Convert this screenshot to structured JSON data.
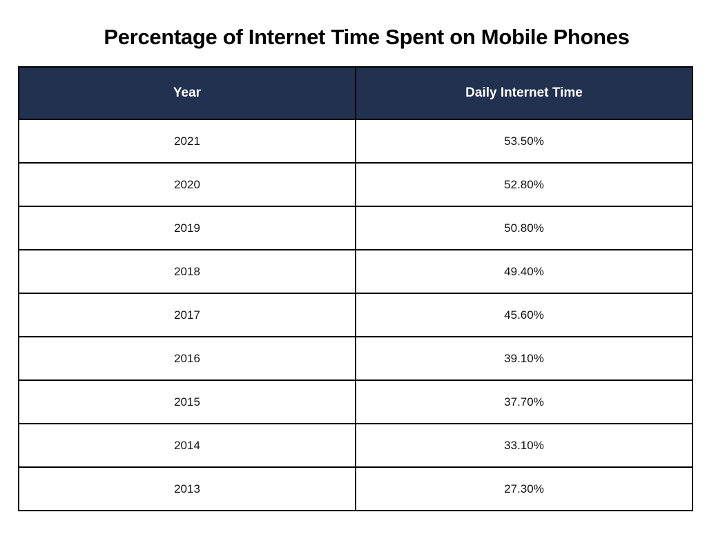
{
  "chart_data": {
    "type": "table",
    "title": "Percentage of Internet Time Spent on Mobile Phones",
    "columns": [
      "Year",
      "Daily Internet Time"
    ],
    "rows": [
      [
        "2021",
        "53.50%"
      ],
      [
        "2020",
        "52.80%"
      ],
      [
        "2019",
        "50.80%"
      ],
      [
        "2018",
        "49.40%"
      ],
      [
        "2017",
        "45.60%"
      ],
      [
        "2016",
        "39.10%"
      ],
      [
        "2015",
        "37.70%"
      ],
      [
        "2014",
        "33.10%"
      ],
      [
        "2013",
        "27.30%"
      ]
    ]
  },
  "colors": {
    "header_background": "#21314f",
    "header_text": "#ffffff",
    "border": "#000000"
  }
}
